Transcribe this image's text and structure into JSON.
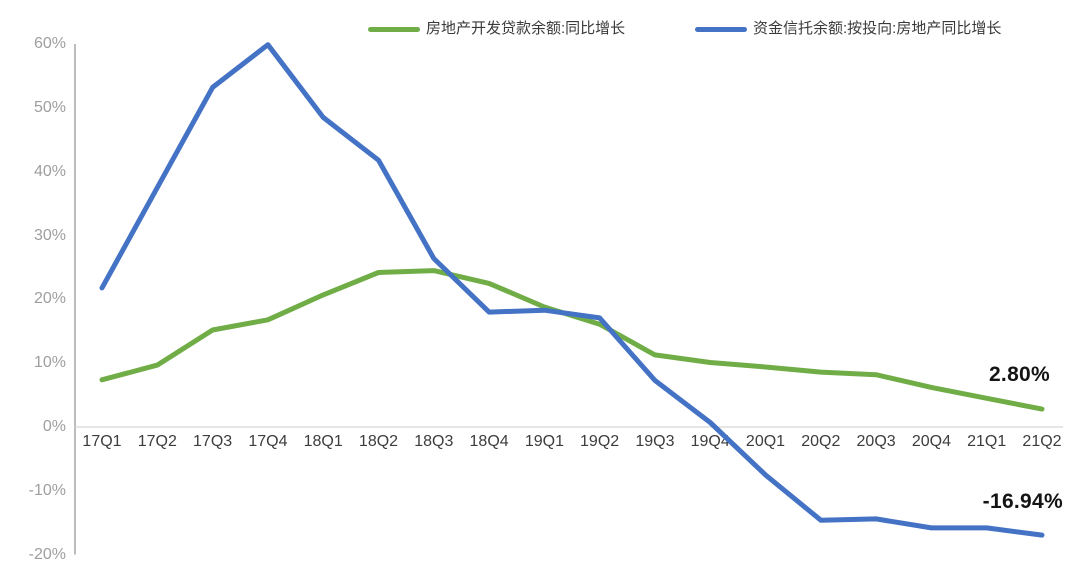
{
  "chart_data": {
    "type": "line",
    "title": "",
    "grid": "off",
    "legend_position": "top",
    "background": "#ffffff",
    "categories": [
      "17Q1",
      "17Q2",
      "17Q3",
      "17Q4",
      "18Q1",
      "18Q2",
      "18Q3",
      "18Q4",
      "19Q1",
      "19Q2",
      "19Q3",
      "19Q4",
      "20Q1",
      "20Q2",
      "20Q3",
      "20Q4",
      "21Q1",
      "21Q2"
    ],
    "series": [
      {
        "name": "房地产开发贷款余额:同比增长",
        "color": "#70ad47",
        "values": [
          7.4,
          9.7,
          15.2,
          16.8,
          20.7,
          24.2,
          24.5,
          22.5,
          18.8,
          16.1,
          11.3,
          10.1,
          9.4,
          8.6,
          8.2,
          6.2,
          4.5,
          2.8
        ],
        "end_label": "2.80%"
      },
      {
        "name": "资金信托余额:按投向:房地产同比增长",
        "color": "#4472c4",
        "values": [
          21.8,
          37.5,
          53.2,
          59.9,
          48.5,
          41.8,
          26.4,
          18.0,
          18.3,
          17.1,
          7.3,
          0.7,
          -7.5,
          -14.6,
          -14.4,
          -15.8,
          -15.8,
          -16.94
        ],
        "end_label": "-16.94%"
      }
    ],
    "y_axis": {
      "min": -20,
      "max": 60,
      "tick_step": 10,
      "unit": "%",
      "ticks": [
        {
          "label": "60%",
          "value": 60
        },
        {
          "label": "50%",
          "value": 50
        },
        {
          "label": "40%",
          "value": 40
        },
        {
          "label": "30%",
          "value": 30
        },
        {
          "label": "20%",
          "value": 20
        },
        {
          "label": "10%",
          "value": 10
        },
        {
          "label": "0%",
          "value": 0
        },
        {
          "label": "-10%",
          "value": -10
        },
        {
          "label": "-20%",
          "value": -20
        }
      ]
    }
  }
}
